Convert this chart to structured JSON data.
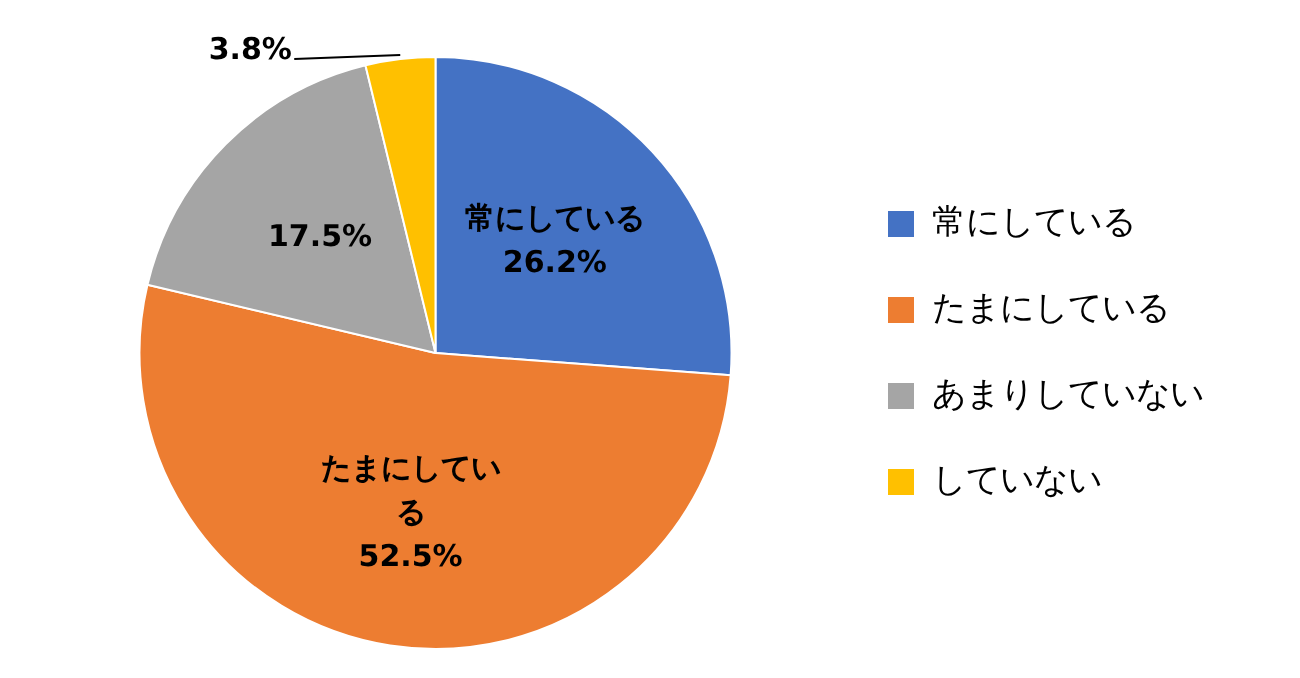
{
  "chart_data": {
    "type": "pie",
    "categories": [
      "常にしている",
      "たまにしている",
      "あまりしていない",
      "していない"
    ],
    "values": [
      26.2,
      52.5,
      17.5,
      3.8
    ],
    "colors": [
      "#4472c4",
      "#ed7d31",
      "#a5a5a5",
      "#ffc000"
    ],
    "value_labels": [
      "常にしている\n26.2%",
      "たまにしている\n52.5%",
      "17.5%",
      "3.8%"
    ],
    "legend": "right"
  }
}
